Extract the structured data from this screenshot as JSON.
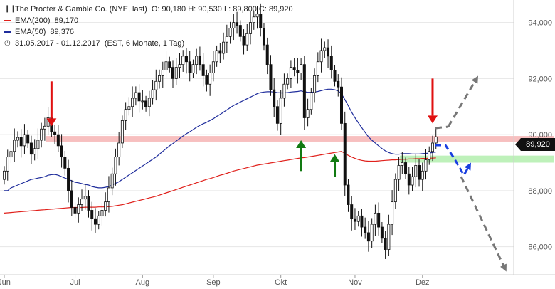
{
  "header": {
    "title": "The Procter & Gamble Co. (NYE, last)",
    "ohlc": "O: 90,180  H: 90,530  L: 89,800  C: 89,920",
    "ema200_label": "EMA(200)",
    "ema200_value": "89,170",
    "ema50_label": "EMA(50)",
    "ema50_value": "89,376",
    "period": "31.05.2017 - 01.12.2017",
    "period_detail": "(EST, 6 Monate, 1 Tag)"
  },
  "last_price": "89,920",
  "colors": {
    "ema200": "#e0201b",
    "ema50": "#1f2d9c",
    "candle": "#111111",
    "resistance_zone": "#f6b4b4",
    "support_zone": "#b7f0b2",
    "arrow_down": "#e01010",
    "arrow_up": "#127a12",
    "forecast_gray": "#777777",
    "forecast_blue": "#1a3fe0"
  },
  "chart_data": {
    "type": "candlestick",
    "ylim": [
      85.0,
      94.6
    ],
    "y_ticks": [
      {
        "value": 86,
        "label": "86,000"
      },
      {
        "value": 88,
        "label": "88,000"
      },
      {
        "value": 90,
        "label": "90,000"
      },
      {
        "value": 92,
        "label": "92,000"
      },
      {
        "value": 94,
        "label": "94,000"
      }
    ],
    "x_ticks": [
      {
        "index": 0,
        "label": "Jun"
      },
      {
        "index": 21,
        "label": "Jul"
      },
      {
        "index": 41,
        "label": "Aug"
      },
      {
        "index": 62,
        "label": "Sep"
      },
      {
        "index": 82,
        "label": "Okt"
      },
      {
        "index": 104,
        "label": "Nov"
      },
      {
        "index": 124,
        "label": "Dez"
      }
    ],
    "close": [
      88.7,
      89.2,
      89.4,
      89.8,
      89.9,
      89.6,
      90.0,
      89.7,
      89.3,
      89.5,
      89.8,
      90.2,
      90.3,
      90.6,
      90.1,
      90.0,
      89.6,
      89.2,
      88.8,
      88.0,
      87.4,
      87.2,
      87.5,
      87.7,
      87.8,
      87.3,
      87.0,
      86.8,
      87.1,
      87.3,
      87.6,
      88.1,
      88.6,
      89.2,
      89.7,
      90.5,
      90.9,
      91.0,
      91.3,
      91.5,
      91.2,
      91.2,
      91.0,
      91.3,
      91.6,
      91.9,
      92.1,
      92.3,
      92.6,
      92.4,
      92.0,
      92.4,
      92.5,
      92.8,
      92.6,
      92.2,
      92.5,
      92.8,
      92.5,
      92.1,
      91.8,
      92.2,
      92.6,
      93.0,
      92.9,
      93.3,
      93.5,
      93.8,
      94.0,
      93.9,
      93.5,
      93.2,
      93.6,
      94.0,
      94.2,
      94.3,
      93.8,
      93.2,
      92.5,
      91.6,
      91.0,
      90.4,
      91.3,
      91.8,
      92.0,
      92.4,
      92.3,
      92.2,
      92.5,
      90.6,
      90.9,
      91.5,
      92.1,
      92.6,
      93.0,
      93.1,
      92.8,
      92.3,
      91.9,
      91.7,
      90.4,
      88.2,
      87.5,
      87.0,
      86.9,
      87.1,
      86.7,
      86.5,
      86.2,
      86.8,
      87.2,
      86.7,
      86.3,
      85.9,
      86.8,
      87.6,
      88.4,
      88.9,
      89.0,
      88.6,
      88.2,
      88.5,
      88.9,
      88.4,
      88.7,
      89.1,
      89.4,
      89.7,
      89.92
    ],
    "ema50": [
      88.0,
      88.0,
      88.1,
      88.15,
      88.2,
      88.25,
      88.3,
      88.35,
      88.4,
      88.42,
      88.45,
      88.47,
      88.5,
      88.55,
      88.57,
      88.58,
      88.55,
      88.5,
      88.45,
      88.4,
      88.35,
      88.3,
      88.28,
      88.25,
      88.22,
      88.2,
      88.15,
      88.12,
      88.1,
      88.1,
      88.12,
      88.15,
      88.2,
      88.26,
      88.32,
      88.4,
      88.48,
      88.56,
      88.64,
      88.72,
      88.8,
      88.88,
      88.96,
      89.04,
      89.12,
      89.2,
      89.3,
      89.4,
      89.5,
      89.6,
      89.68,
      89.77,
      89.86,
      89.95,
      90.03,
      90.1,
      90.18,
      90.26,
      90.33,
      90.39,
      90.44,
      90.5,
      90.57,
      90.65,
      90.72,
      90.8,
      90.88,
      90.96,
      91.04,
      91.1,
      91.16,
      91.22,
      91.28,
      91.34,
      91.4,
      91.46,
      91.5,
      91.52,
      91.53,
      91.53,
      91.52,
      91.5,
      91.49,
      91.49,
      91.5,
      91.52,
      91.53,
      91.54,
      91.56,
      91.53,
      91.51,
      91.51,
      91.52,
      91.54,
      91.57,
      91.6,
      91.62,
      91.62,
      91.6,
      91.56,
      91.45,
      91.25,
      91.03,
      90.8,
      90.6,
      90.42,
      90.25,
      90.08,
      89.92,
      89.8,
      89.7,
      89.6,
      89.5,
      89.42,
      89.36,
      89.32,
      89.3,
      89.3,
      89.32,
      89.32,
      89.32,
      89.31,
      89.31,
      89.31,
      89.32,
      89.33,
      89.34,
      89.36,
      89.376
    ],
    "ema200": [
      87.2,
      87.21,
      87.22,
      87.23,
      87.24,
      87.25,
      87.26,
      87.27,
      87.28,
      87.29,
      87.3,
      87.31,
      87.32,
      87.33,
      87.34,
      87.35,
      87.36,
      87.37,
      87.38,
      87.39,
      87.4,
      87.4,
      87.4,
      87.4,
      87.41,
      87.41,
      87.41,
      87.41,
      87.42,
      87.42,
      87.42,
      87.43,
      87.44,
      87.46,
      87.48,
      87.5,
      87.53,
      87.56,
      87.59,
      87.62,
      87.65,
      87.68,
      87.71,
      87.74,
      87.77,
      87.8,
      87.84,
      87.88,
      87.92,
      87.96,
      88.0,
      88.04,
      88.08,
      88.12,
      88.16,
      88.2,
      88.24,
      88.28,
      88.32,
      88.36,
      88.4,
      88.43,
      88.47,
      88.51,
      88.55,
      88.58,
      88.62,
      88.66,
      88.7,
      88.73,
      88.76,
      88.79,
      88.82,
      88.85,
      88.88,
      88.91,
      88.93,
      88.95,
      88.97,
      88.99,
      89.01,
      89.03,
      89.05,
      89.07,
      89.09,
      89.11,
      89.13,
      89.15,
      89.17,
      89.18,
      89.2,
      89.22,
      89.24,
      89.26,
      89.28,
      89.3,
      89.32,
      89.34,
      89.36,
      89.38,
      89.4,
      89.33,
      89.26,
      89.2,
      89.15,
      89.11,
      89.08,
      89.06,
      89.05,
      89.05,
      89.05,
      89.06,
      89.07,
      89.08,
      89.09,
      89.1,
      89.1,
      89.11,
      89.12,
      89.12,
      89.13,
      89.13,
      89.14,
      89.14,
      89.15,
      89.15,
      89.16,
      89.16,
      89.17
    ],
    "resistance_zone": [
      89.75,
      89.95
    ],
    "support_zone": [
      89.0,
      89.25
    ],
    "annotations": [
      {
        "type": "arrow-down",
        "index": 14,
        "from": 91.9,
        "to": 90.3,
        "color": "arrow_down"
      },
      {
        "type": "arrow-down",
        "index": 127,
        "from": 92.0,
        "to": 90.4,
        "color": "arrow_down"
      },
      {
        "type": "arrow-up",
        "index": 88,
        "from": 88.7,
        "to": 89.8,
        "color": "arrow_up"
      },
      {
        "type": "arrow-up",
        "index": 98,
        "from": 88.5,
        "to": 89.3,
        "color": "arrow_up"
      }
    ]
  }
}
